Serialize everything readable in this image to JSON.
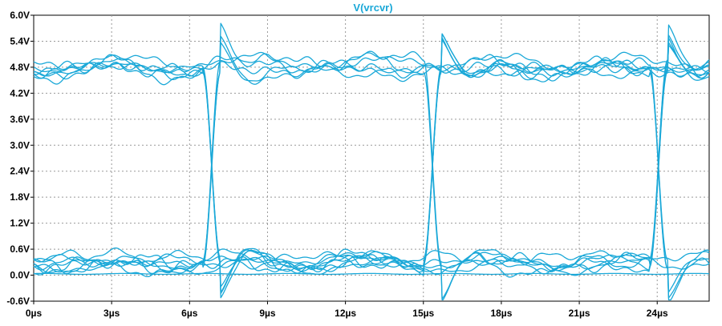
{
  "chart_data": {
    "type": "line",
    "title": "V(vrcvr)",
    "xlabel": "",
    "ylabel": "",
    "xlim": [
      0,
      26
    ],
    "ylim": [
      -0.6,
      6.0
    ],
    "x_tick_values": [
      0,
      3,
      6,
      9,
      12,
      15,
      18,
      21,
      24
    ],
    "x_tick_labels": [
      "0µs",
      "3µs",
      "6µs",
      "9µs",
      "12µs",
      "15µs",
      "18µs",
      "21µs",
      "24µs"
    ],
    "y_tick_values": [
      6.0,
      5.4,
      4.8,
      4.2,
      3.6,
      3.0,
      2.4,
      1.8,
      1.2,
      0.6,
      0.0,
      -0.6
    ],
    "y_tick_labels": [
      "6.0V",
      "5.4V",
      "4.8V",
      "4.2V",
      "3.6V",
      "3.0V",
      "2.4V",
      "1.8V",
      "1.2V",
      "0.6V",
      "0.0V",
      "-0.6V"
    ],
    "grid": true,
    "series_color": "#1aa8d8",
    "title_color": "#1aa8d8",
    "high_level": 4.8,
    "low_level": 0.2,
    "transition_times": [
      6.5,
      15.0,
      23.7
    ],
    "overshoot_peak": 5.55,
    "undershoot_peak": -0.5,
    "num_traces": 16
  }
}
